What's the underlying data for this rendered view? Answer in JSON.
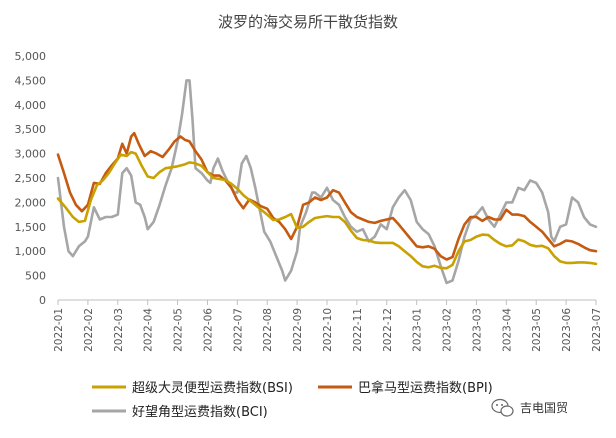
{
  "chart_data": {
    "type": "line",
    "title": "波罗的海交易所干散货指数",
    "xlabel": "",
    "ylabel": "",
    "ylim": [
      0,
      5000
    ],
    "yticks": [
      0,
      500,
      1000,
      1500,
      2000,
      2500,
      3000,
      3500,
      4000,
      4500,
      5000
    ],
    "ytick_labels": [
      "0",
      "500",
      "1,000",
      "1,500",
      "2,000",
      "2,500",
      "3,000",
      "3,500",
      "4,000",
      "4,500",
      "5,000"
    ],
    "x_ticks": [
      "2022-01",
      "2022-02",
      "2022-03",
      "2022-04",
      "2022-05",
      "2022-06",
      "2022-07",
      "2022-08",
      "2022-09",
      "2022-10",
      "2022-11",
      "2022-12",
      "2023-01",
      "2023-02",
      "2023-03",
      "2023-04",
      "2023-05",
      "2023-06",
      "2023-07"
    ],
    "grid": false,
    "legend_position": "bottom",
    "series": [
      {
        "name": "超级大灵便型运费指数(BSI)",
        "color": "#c9a100",
        "points": [
          [
            0,
            2080
          ],
          [
            0.25,
            1900
          ],
          [
            0.5,
            1700
          ],
          [
            0.7,
            1600
          ],
          [
            0.9,
            1620
          ],
          [
            1.1,
            2050
          ],
          [
            1.3,
            2350
          ],
          [
            1.5,
            2450
          ],
          [
            1.7,
            2600
          ],
          [
            1.9,
            2800
          ],
          [
            2.1,
            2980
          ],
          [
            2.3,
            2950
          ],
          [
            2.45,
            3030
          ],
          [
            2.6,
            3000
          ],
          [
            2.8,
            2750
          ],
          [
            3.0,
            2530
          ],
          [
            3.2,
            2500
          ],
          [
            3.4,
            2620
          ],
          [
            3.6,
            2700
          ],
          [
            3.8,
            2720
          ],
          [
            4.0,
            2740
          ],
          [
            4.2,
            2770
          ],
          [
            4.4,
            2820
          ],
          [
            4.6,
            2800
          ],
          [
            4.8,
            2750
          ],
          [
            5.0,
            2620
          ],
          [
            5.2,
            2500
          ],
          [
            5.4,
            2480
          ],
          [
            5.6,
            2460
          ],
          [
            5.8,
            2380
          ],
          [
            6.0,
            2280
          ],
          [
            6.2,
            2150
          ],
          [
            6.4,
            2050
          ],
          [
            6.6,
            1950
          ],
          [
            6.8,
            1850
          ],
          [
            7.0,
            1750
          ],
          [
            7.2,
            1640
          ],
          [
            7.4,
            1650
          ],
          [
            7.6,
            1700
          ],
          [
            7.8,
            1760
          ],
          [
            8.0,
            1480
          ],
          [
            8.2,
            1500
          ],
          [
            8.4,
            1600
          ],
          [
            8.6,
            1680
          ],
          [
            8.8,
            1700
          ],
          [
            9.0,
            1720
          ],
          [
            9.2,
            1700
          ],
          [
            9.4,
            1700
          ],
          [
            9.6,
            1600
          ],
          [
            9.8,
            1420
          ],
          [
            10.0,
            1270
          ],
          [
            10.2,
            1230
          ],
          [
            10.4,
            1220
          ],
          [
            10.6,
            1180
          ],
          [
            10.8,
            1170
          ],
          [
            11.0,
            1170
          ],
          [
            11.2,
            1170
          ],
          [
            11.4,
            1100
          ],
          [
            11.6,
            1000
          ],
          [
            11.8,
            900
          ],
          [
            12.0,
            780
          ],
          [
            12.2,
            690
          ],
          [
            12.4,
            670
          ],
          [
            12.6,
            700
          ],
          [
            12.8,
            660
          ],
          [
            13.0,
            650
          ],
          [
            13.2,
            720
          ],
          [
            13.4,
            1000
          ],
          [
            13.6,
            1200
          ],
          [
            13.8,
            1230
          ],
          [
            14.0,
            1300
          ],
          [
            14.2,
            1340
          ],
          [
            14.4,
            1330
          ],
          [
            14.6,
            1230
          ],
          [
            14.8,
            1150
          ],
          [
            15.0,
            1100
          ],
          [
            15.2,
            1120
          ],
          [
            15.4,
            1240
          ],
          [
            15.6,
            1200
          ],
          [
            15.8,
            1130
          ],
          [
            16.0,
            1100
          ],
          [
            16.2,
            1110
          ],
          [
            16.4,
            1060
          ],
          [
            16.6,
            900
          ],
          [
            16.8,
            790
          ],
          [
            17.0,
            760
          ],
          [
            17.2,
            760
          ],
          [
            17.4,
            770
          ],
          [
            17.6,
            770
          ],
          [
            17.8,
            760
          ],
          [
            18.0,
            740
          ]
        ]
      },
      {
        "name": "巴拿马型运费指数(BPI)",
        "color": "#c55a11",
        "points": [
          [
            0,
            2980
          ],
          [
            0.2,
            2600
          ],
          [
            0.4,
            2200
          ],
          [
            0.6,
            1950
          ],
          [
            0.8,
            1820
          ],
          [
            1.0,
            1950
          ],
          [
            1.2,
            2400
          ],
          [
            1.4,
            2380
          ],
          [
            1.6,
            2600
          ],
          [
            1.8,
            2760
          ],
          [
            2.0,
            2900
          ],
          [
            2.15,
            3200
          ],
          [
            2.3,
            3000
          ],
          [
            2.45,
            3350
          ],
          [
            2.55,
            3420
          ],
          [
            2.7,
            3200
          ],
          [
            2.9,
            2950
          ],
          [
            3.1,
            3050
          ],
          [
            3.3,
            3000
          ],
          [
            3.5,
            2930
          ],
          [
            3.7,
            3080
          ],
          [
            3.9,
            3250
          ],
          [
            4.1,
            3350
          ],
          [
            4.25,
            3280
          ],
          [
            4.4,
            3250
          ],
          [
            4.6,
            3050
          ],
          [
            4.8,
            2880
          ],
          [
            5.0,
            2620
          ],
          [
            5.2,
            2550
          ],
          [
            5.4,
            2550
          ],
          [
            5.6,
            2450
          ],
          [
            5.8,
            2300
          ],
          [
            6.0,
            2050
          ],
          [
            6.2,
            1880
          ],
          [
            6.4,
            2060
          ],
          [
            6.6,
            2000
          ],
          [
            6.8,
            1920
          ],
          [
            7.0,
            1870
          ],
          [
            7.2,
            1680
          ],
          [
            7.4,
            1600
          ],
          [
            7.6,
            1450
          ],
          [
            7.8,
            1250
          ],
          [
            8.0,
            1500
          ],
          [
            8.2,
            1950
          ],
          [
            8.4,
            2000
          ],
          [
            8.6,
            2100
          ],
          [
            8.8,
            2050
          ],
          [
            9.0,
            2100
          ],
          [
            9.2,
            2250
          ],
          [
            9.4,
            2200
          ],
          [
            9.6,
            2000
          ],
          [
            9.8,
            1800
          ],
          [
            10.0,
            1700
          ],
          [
            10.2,
            1650
          ],
          [
            10.4,
            1600
          ],
          [
            10.6,
            1580
          ],
          [
            10.8,
            1620
          ],
          [
            11.0,
            1650
          ],
          [
            11.2,
            1680
          ],
          [
            11.4,
            1550
          ],
          [
            11.6,
            1400
          ],
          [
            11.8,
            1250
          ],
          [
            12.0,
            1100
          ],
          [
            12.2,
            1080
          ],
          [
            12.4,
            1100
          ],
          [
            12.6,
            1050
          ],
          [
            12.8,
            900
          ],
          [
            13.0,
            830
          ],
          [
            13.2,
            880
          ],
          [
            13.4,
            1250
          ],
          [
            13.6,
            1550
          ],
          [
            13.8,
            1700
          ],
          [
            14.0,
            1700
          ],
          [
            14.2,
            1620
          ],
          [
            14.4,
            1700
          ],
          [
            14.6,
            1650
          ],
          [
            14.8,
            1650
          ],
          [
            15.0,
            1850
          ],
          [
            15.2,
            1750
          ],
          [
            15.4,
            1750
          ],
          [
            15.6,
            1720
          ],
          [
            15.8,
            1600
          ],
          [
            16.0,
            1500
          ],
          [
            16.2,
            1400
          ],
          [
            16.4,
            1250
          ],
          [
            16.6,
            1100
          ],
          [
            16.8,
            1150
          ],
          [
            17.0,
            1220
          ],
          [
            17.2,
            1200
          ],
          [
            17.4,
            1150
          ],
          [
            17.6,
            1080
          ],
          [
            17.8,
            1020
          ],
          [
            18.0,
            1000
          ]
        ]
      },
      {
        "name": "好望角型运费指数(BCI)",
        "color": "#a6a6a6",
        "points": [
          [
            0,
            2500
          ],
          [
            0.2,
            1500
          ],
          [
            0.35,
            1000
          ],
          [
            0.5,
            900
          ],
          [
            0.7,
            1100
          ],
          [
            0.9,
            1200
          ],
          [
            1.0,
            1300
          ],
          [
            1.2,
            1900
          ],
          [
            1.4,
            1650
          ],
          [
            1.6,
            1700
          ],
          [
            1.8,
            1700
          ],
          [
            2.0,
            1750
          ],
          [
            2.15,
            2600
          ],
          [
            2.3,
            2700
          ],
          [
            2.45,
            2550
          ],
          [
            2.6,
            2000
          ],
          [
            2.75,
            1950
          ],
          [
            2.9,
            1700
          ],
          [
            3.0,
            1450
          ],
          [
            3.2,
            1600
          ],
          [
            3.4,
            1950
          ],
          [
            3.6,
            2350
          ],
          [
            3.8,
            2700
          ],
          [
            4.0,
            3250
          ],
          [
            4.15,
            3800
          ],
          [
            4.3,
            4500
          ],
          [
            4.4,
            4500
          ],
          [
            4.5,
            3700
          ],
          [
            4.6,
            2700
          ],
          [
            4.8,
            2600
          ],
          [
            5.0,
            2450
          ],
          [
            5.1,
            2400
          ],
          [
            5.2,
            2700
          ],
          [
            5.35,
            2900
          ],
          [
            5.5,
            2650
          ],
          [
            5.7,
            2400
          ],
          [
            5.9,
            2200
          ],
          [
            6.0,
            2200
          ],
          [
            6.15,
            2800
          ],
          [
            6.3,
            2950
          ],
          [
            6.45,
            2700
          ],
          [
            6.6,
            2300
          ],
          [
            6.8,
            1700
          ],
          [
            6.9,
            1400
          ],
          [
            7.1,
            1200
          ],
          [
            7.3,
            900
          ],
          [
            7.5,
            600
          ],
          [
            7.6,
            400
          ],
          [
            7.8,
            600
          ],
          [
            8.0,
            1000
          ],
          [
            8.1,
            1500
          ],
          [
            8.3,
            1800
          ],
          [
            8.5,
            2200
          ],
          [
            8.6,
            2200
          ],
          [
            8.8,
            2100
          ],
          [
            9.0,
            2300
          ],
          [
            9.2,
            2050
          ],
          [
            9.4,
            1950
          ],
          [
            9.6,
            1700
          ],
          [
            9.8,
            1500
          ],
          [
            10.0,
            1400
          ],
          [
            10.2,
            1450
          ],
          [
            10.4,
            1200
          ],
          [
            10.6,
            1300
          ],
          [
            10.8,
            1550
          ],
          [
            11.0,
            1450
          ],
          [
            11.2,
            1900
          ],
          [
            11.4,
            2100
          ],
          [
            11.6,
            2250
          ],
          [
            11.8,
            2050
          ],
          [
            12.0,
            1600
          ],
          [
            12.2,
            1450
          ],
          [
            12.4,
            1350
          ],
          [
            12.6,
            1100
          ],
          [
            12.8,
            700
          ],
          [
            13.0,
            350
          ],
          [
            13.2,
            400
          ],
          [
            13.4,
            800
          ],
          [
            13.6,
            1300
          ],
          [
            13.8,
            1650
          ],
          [
            14.0,
            1750
          ],
          [
            14.2,
            1900
          ],
          [
            14.4,
            1650
          ],
          [
            14.6,
            1500
          ],
          [
            14.8,
            1750
          ],
          [
            15.0,
            2000
          ],
          [
            15.2,
            2000
          ],
          [
            15.4,
            2300
          ],
          [
            15.6,
            2250
          ],
          [
            15.8,
            2450
          ],
          [
            16.0,
            2400
          ],
          [
            16.2,
            2200
          ],
          [
            16.4,
            1800
          ],
          [
            16.5,
            1300
          ],
          [
            16.6,
            1200
          ],
          [
            16.8,
            1500
          ],
          [
            17.0,
            1550
          ],
          [
            17.2,
            2100
          ],
          [
            17.4,
            2000
          ],
          [
            17.6,
            1700
          ],
          [
            17.8,
            1550
          ],
          [
            18.0,
            1500
          ]
        ]
      }
    ]
  },
  "watermark": {
    "text": "吉电国贸",
    "icon": "wechat-icon"
  }
}
